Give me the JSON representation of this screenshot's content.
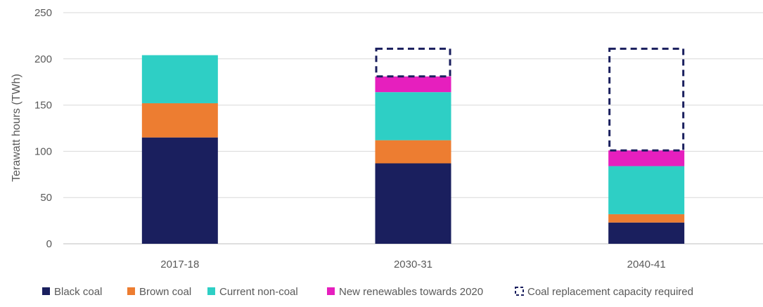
{
  "chart_data": {
    "type": "bar",
    "stacked": true,
    "title": "",
    "xlabel": "",
    "ylabel": "Terawatt hours (TWh)",
    "ylim": [
      0,
      250
    ],
    "yticks": [
      0,
      50,
      100,
      150,
      200,
      250
    ],
    "grid": true,
    "legend_position": "bottom",
    "categories": [
      "2017-18",
      "2030-31",
      "2040-41"
    ],
    "series": [
      {
        "name": "Black coal",
        "color": "#1a1f5e",
        "values": [
          115,
          87,
          23
        ]
      },
      {
        "name": "Brown coal",
        "color": "#ed7d31",
        "values": [
          37,
          25,
          9
        ]
      },
      {
        "name": "Current non-coal",
        "color": "#2ecfc5",
        "values": [
          52,
          52,
          52
        ]
      },
      {
        "name": "New renewables towards 2020",
        "color": "#e61fbe",
        "values": [
          0,
          17,
          17
        ]
      },
      {
        "name": "Coal replacement capacity required",
        "color": "#1a1f5e",
        "style": "dashed-outline",
        "values": [
          0,
          30,
          110
        ]
      }
    ]
  }
}
